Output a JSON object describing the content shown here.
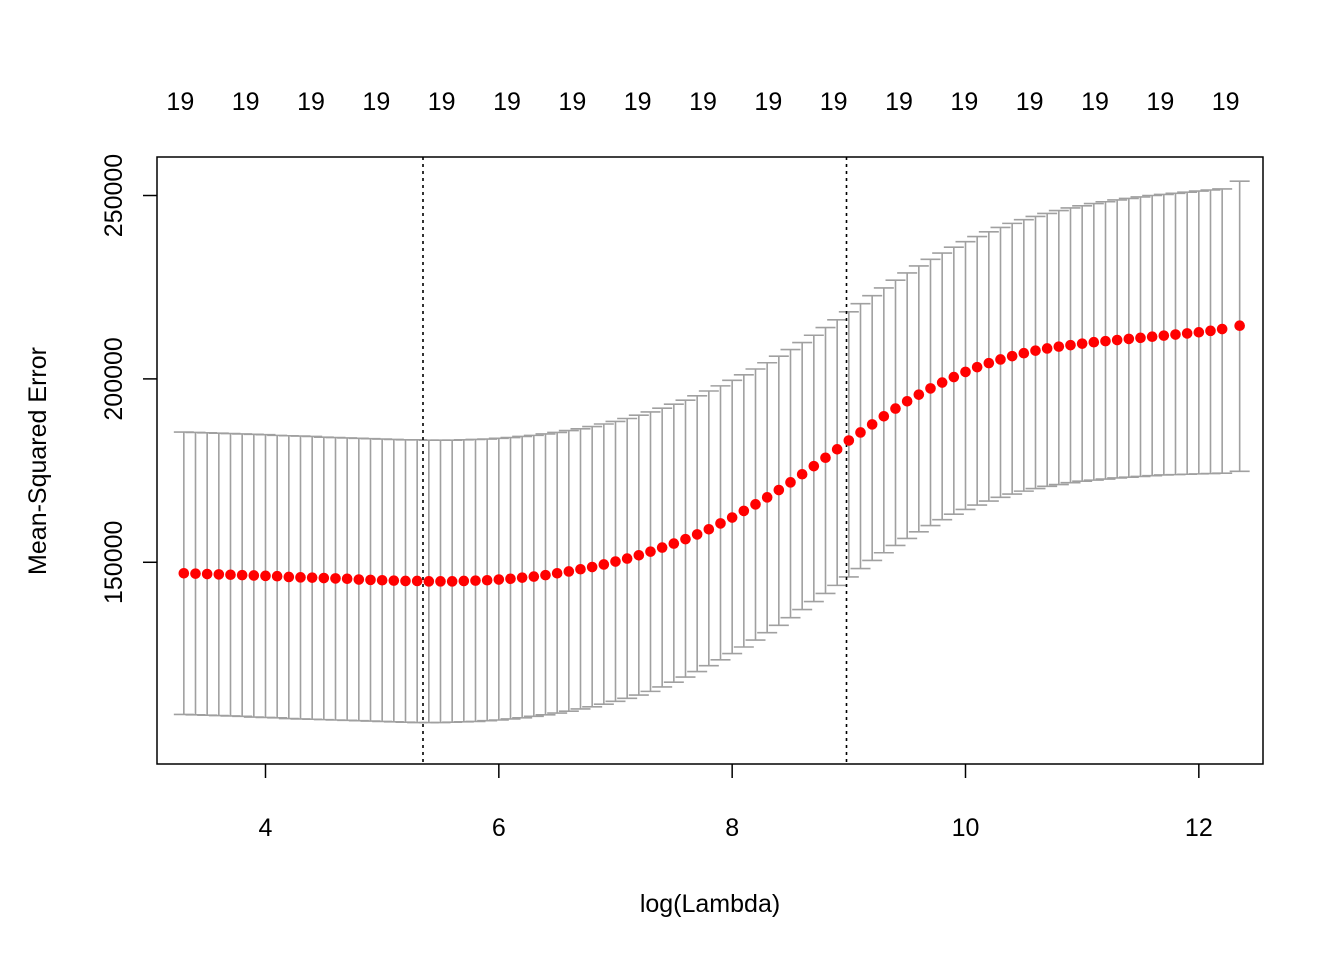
{
  "chart_data": {
    "type": "scatter",
    "title": "",
    "xlabel": "log(Lambda)",
    "ylabel": "Mean-Squared Error",
    "xlim": [
      3.07,
      12.55
    ],
    "ylim": [
      95000,
      260500
    ],
    "x_ticks": [
      {
        "value": 4,
        "label": "4"
      },
      {
        "value": 6,
        "label": "6"
      },
      {
        "value": 8,
        "label": "8"
      },
      {
        "value": 10,
        "label": "10"
      },
      {
        "value": 12,
        "label": "12"
      }
    ],
    "y_ticks": [
      {
        "value": 150000,
        "label": "150000"
      },
      {
        "value": 200000,
        "label": "200000"
      },
      {
        "value": 250000,
        "label": "250000"
      }
    ],
    "top_axis": {
      "ticks": [
        3.27,
        3.83,
        4.39,
        4.95,
        5.51,
        6.07,
        6.63,
        7.19,
        7.75,
        8.31,
        8.87,
        9.43,
        9.99,
        10.55,
        11.11,
        11.67,
        12.23
      ],
      "labels": [
        "19",
        "19",
        "19",
        "19",
        "19",
        "19",
        "19",
        "19",
        "19",
        "19",
        "19",
        "19",
        "19",
        "19",
        "19",
        "19",
        "19"
      ]
    },
    "reference_lines_x": [
      5.35,
      8.98
    ],
    "series": [
      {
        "points_style": "red filled circles",
        "error_bars": "gray",
        "x": [
          3.3,
          3.4,
          3.5,
          3.6,
          3.7,
          3.8,
          3.9,
          4.0,
          4.1,
          4.2,
          4.3,
          4.4,
          4.5,
          4.6,
          4.7,
          4.8,
          4.9,
          5.0,
          5.1,
          5.2,
          5.3,
          5.4,
          5.5,
          5.6,
          5.7,
          5.8,
          5.9,
          6.0,
          6.1,
          6.2,
          6.3,
          6.4,
          6.5,
          6.6,
          6.7,
          6.8,
          6.9,
          7.0,
          7.1,
          7.2,
          7.3,
          7.4,
          7.5,
          7.6,
          7.7,
          7.8,
          7.9,
          8.0,
          8.1,
          8.2,
          8.3,
          8.4,
          8.5,
          8.6,
          8.7,
          8.8,
          8.9,
          9.0,
          9.1,
          9.2,
          9.3,
          9.4,
          9.5,
          9.6,
          9.7,
          9.8,
          9.9,
          10.0,
          10.1,
          10.2,
          10.3,
          10.4,
          10.5,
          10.6,
          10.7,
          10.8,
          10.9,
          11.0,
          11.1,
          11.2,
          11.3,
          11.4,
          11.5,
          11.6,
          11.7,
          11.8,
          11.9,
          12.0,
          12.1,
          12.2,
          12.35
        ],
        "y": [
          147000,
          146900,
          146800,
          146700,
          146600,
          146500,
          146400,
          146300,
          146200,
          146000,
          145900,
          145800,
          145700,
          145600,
          145500,
          145300,
          145200,
          145100,
          145000,
          144900,
          144900,
          144800,
          144800,
          144800,
          144900,
          145000,
          145100,
          145300,
          145500,
          145800,
          146100,
          146500,
          147000,
          147500,
          148100,
          148700,
          149400,
          150200,
          151000,
          151900,
          152900,
          154000,
          155100,
          156300,
          157600,
          159000,
          160600,
          162200,
          164000,
          165800,
          167700,
          169700,
          171800,
          174000,
          176200,
          178500,
          180800,
          183200,
          185400,
          187600,
          189800,
          191900,
          193900,
          195700,
          197400,
          199000,
          200500,
          201900,
          203200,
          204300,
          205300,
          206200,
          207000,
          207700,
          208300,
          208800,
          209200,
          209600,
          210000,
          210300,
          210600,
          210900,
          211200,
          211500,
          211800,
          212100,
          212400,
          212700,
          213100,
          213600,
          214500
        ],
        "y_upper": [
          185500,
          185400,
          185300,
          185200,
          185100,
          185000,
          184900,
          184800,
          184600,
          184500,
          184400,
          184300,
          184100,
          184000,
          183900,
          183800,
          183700,
          183600,
          183500,
          183400,
          183400,
          183300,
          183300,
          183300,
          183400,
          183500,
          183600,
          183800,
          184000,
          184300,
          184600,
          185000,
          185400,
          185900,
          186400,
          187000,
          187700,
          188400,
          189200,
          190100,
          191000,
          192000,
          193100,
          194200,
          195400,
          196700,
          198100,
          199600,
          201100,
          202700,
          204400,
          206200,
          208000,
          209900,
          211900,
          214000,
          216100,
          218300,
          220500,
          222700,
          224800,
          226900,
          228900,
          230800,
          232600,
          234300,
          235900,
          237400,
          238800,
          240100,
          241300,
          242400,
          243400,
          244300,
          245100,
          245900,
          246600,
          247200,
          247800,
          248300,
          248800,
          249200,
          249600,
          250000,
          250300,
          250600,
          250900,
          251200,
          251500,
          251800,
          253900
        ],
        "y_lower": [
          108500,
          108400,
          108300,
          108200,
          108100,
          108000,
          107800,
          107700,
          107600,
          107400,
          107300,
          107200,
          107100,
          107000,
          106900,
          106800,
          106700,
          106600,
          106500,
          106400,
          106300,
          106300,
          106300,
          106400,
          106500,
          106600,
          106800,
          107000,
          107300,
          107600,
          108000,
          108400,
          108900,
          109400,
          110000,
          110600,
          111300,
          112100,
          112900,
          113800,
          114800,
          116000,
          117300,
          118700,
          120200,
          121800,
          123400,
          125100,
          126900,
          128800,
          130800,
          132800,
          134900,
          137100,
          139300,
          141500,
          143700,
          146000,
          148300,
          150500,
          152600,
          154600,
          156500,
          158300,
          160000,
          161600,
          163100,
          164400,
          165600,
          166700,
          167700,
          168600,
          169400,
          170100,
          170700,
          171200,
          171700,
          172100,
          172400,
          172700,
          173000,
          173200,
          173400,
          173600,
          173800,
          173900,
          174000,
          174100,
          174200,
          174300,
          174800
        ]
      }
    ],
    "grid": false,
    "legend": "none",
    "colors": {
      "points": "#ff0000",
      "error_bars": "#a0a0a0",
      "axes": "#000000",
      "reference_lines": "#000000"
    }
  }
}
